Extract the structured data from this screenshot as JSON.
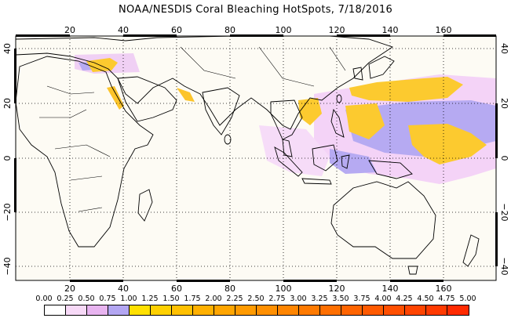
{
  "title": "NOAA/NESDIS Coral Bleaching HotSpots, 7/18/2016",
  "axes": {
    "lon_ticks_top": [
      "20",
      "40",
      "60",
      "80",
      "100",
      "120",
      "140",
      "160"
    ],
    "lon_ticks_bottom": [
      "20",
      "40",
      "60",
      "80",
      "100",
      "120",
      "140",
      "160"
    ],
    "lat_ticks_left": [
      "40",
      "20",
      "0",
      "−20",
      "−40"
    ],
    "lat_ticks_right": [
      "40",
      "20",
      "0",
      "−20",
      "−40"
    ]
  },
  "colorbar": {
    "labels": [
      "0.00",
      "0.25",
      "0.50",
      "0.75",
      "1.00",
      "1.25",
      "1.50",
      "1.75",
      "2.00",
      "2.25",
      "2.50",
      "2.75",
      "3.00",
      "3.25",
      "3.50",
      "3.75",
      "4.00",
      "4.25",
      "4.50",
      "4.75",
      "5.00"
    ],
    "colors": [
      "#ffffff",
      "#f7d9f7",
      "#e8b4f0",
      "#b3a6f2",
      "#ffe000",
      "#ffd000",
      "#ffc000",
      "#ffb000",
      "#ffa500",
      "#ff9a00",
      "#ff8f00",
      "#ff8500",
      "#ff7a00",
      "#ff6f00",
      "#ff6400",
      "#ff5a00",
      "#ff4f00",
      "#ff4400",
      "#ff3a00",
      "#ff2a00"
    ]
  },
  "legend_colors": {
    "land": "#fefcf5",
    "ocean": "#fdfaf2",
    "low": "#f2cdf6",
    "watch": "#aea3f0",
    "hot": "#fccb2e"
  }
}
